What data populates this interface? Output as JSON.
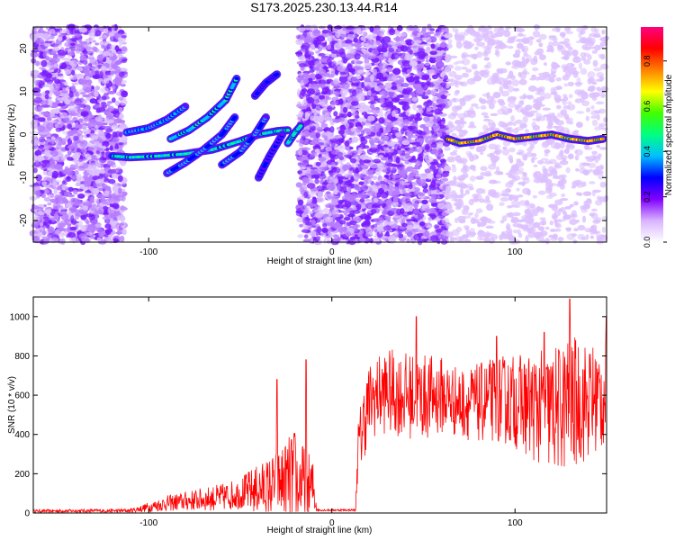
{
  "figure_title": "S173.2025.230.13.44.R14",
  "chart_data": [
    {
      "type": "heatmap",
      "id": "spectrogram",
      "xlabel": "Height of straight line (km)",
      "ylabel": "Frequency (Hz)",
      "xlim": [
        -163,
        150
      ],
      "ylim": [
        -25,
        25
      ],
      "xticks": [
        -100,
        0,
        100
      ],
      "xtick_labels": [
        "-100",
        "0",
        "100"
      ],
      "yticks": [
        -20,
        -10,
        0,
        10,
        20
      ],
      "ytick_labels": [
        "-20",
        "-10",
        "0",
        "10",
        "20"
      ],
      "colorbar": {
        "label": "Normalized spectral amplitude",
        "range": [
          0,
          0.95
        ],
        "ticks": [
          0.0,
          0.2,
          0.4,
          0.6,
          0.8
        ],
        "tick_labels": [
          "0.0",
          "0.2",
          "0.4",
          "0.6",
          "0.8"
        ],
        "colors": [
          "#ffffff",
          "#d9b3ff",
          "#8000ff",
          "#0000ff",
          "#00c0ff",
          "#00ff80",
          "#40ff00",
          "#ffff00",
          "#ff8000",
          "#ff0000",
          "#ff0080"
        ]
      },
      "noise_regions": [
        {
          "x_from": -163,
          "x_to": -113,
          "level": 0.2
        },
        {
          "x_from": -18,
          "x_to": 63,
          "level": 0.25
        },
        {
          "x_from": 63,
          "x_to": 150,
          "level": 0.05
        }
      ],
      "ridges": [
        {
          "x": [
            -120,
            -110,
            -95,
            -80,
            -65,
            -50,
            -40,
            -30,
            -24
          ],
          "y": [
            -5,
            -5.3,
            -5,
            -4.5,
            -3.5,
            -1.5,
            0,
            0.8,
            1
          ],
          "amp": 0.55
        },
        {
          "x": [
            -112,
            -100,
            -90,
            -80
          ],
          "y": [
            0.5,
            1.5,
            3.5,
            6.5
          ],
          "amp": 0.45
        },
        {
          "x": [
            -88,
            -78,
            -68,
            -58,
            -52
          ],
          "y": [
            -1,
            1,
            4,
            8,
            13
          ],
          "amp": 0.5
        },
        {
          "x": [
            -90,
            -80,
            -70,
            -60,
            -53
          ],
          "y": [
            -9,
            -6.5,
            -3.5,
            0,
            4
          ],
          "amp": 0.4
        },
        {
          "x": [
            -60,
            -50,
            -42,
            -36
          ],
          "y": [
            -7,
            -4,
            0,
            4
          ],
          "amp": 0.4
        },
        {
          "x": [
            -42,
            -36,
            -30
          ],
          "y": [
            9,
            12,
            14
          ],
          "amp": 0.35
        },
        {
          "x": [
            -40,
            -34,
            -27
          ],
          "y": [
            -10,
            -5,
            0
          ],
          "amp": 0.35
        },
        {
          "x": [
            -24,
            -20,
            -17
          ],
          "y": [
            -2,
            0.5,
            2
          ],
          "amp": 0.55
        },
        {
          "x": [
            63,
            70,
            80,
            90,
            100,
            110,
            120,
            130,
            140,
            148
          ],
          "y": [
            -1,
            -2,
            -1.5,
            0,
            -1,
            -0.5,
            0,
            -1,
            -1.5,
            -1
          ],
          "amp": 0.9
        }
      ]
    },
    {
      "type": "line",
      "id": "snr",
      "xlabel": "Height of straight line (km)",
      "ylabel": "SNR (10 * v/v)",
      "xlim": [
        -163,
        150
      ],
      "ylim": [
        0,
        1100
      ],
      "xticks": [
        -100,
        0,
        100
      ],
      "xtick_labels": [
        "-100",
        "0",
        "100"
      ],
      "yticks": [
        0,
        200,
        400,
        600,
        800,
        1000
      ],
      "ytick_labels": [
        "0",
        "200",
        "400",
        "600",
        "800",
        "1000"
      ],
      "color": "#ff0000",
      "envelope": {
        "x": [
          -163,
          -110,
          -100,
          -90,
          -80,
          -70,
          -60,
          -50,
          -45,
          -40,
          -35,
          -30,
          -25,
          -20,
          -15,
          -10,
          -8,
          0,
          13,
          14,
          17,
          20,
          25,
          30,
          40,
          50,
          60,
          70,
          80,
          90,
          100,
          110,
          120,
          130,
          140,
          150
        ],
        "base": [
          10,
          12,
          30,
          50,
          60,
          70,
          80,
          100,
          110,
          120,
          130,
          150,
          170,
          190,
          140,
          120,
          15,
          15,
          15,
          300,
          450,
          560,
          600,
          620,
          600,
          590,
          600,
          560,
          560,
          580,
          570,
          540,
          520,
          560,
          570,
          600
        ],
        "spread": [
          8,
          10,
          25,
          40,
          50,
          60,
          70,
          80,
          110,
          130,
          150,
          170,
          200,
          250,
          200,
          150,
          5,
          5,
          5,
          150,
          200,
          200,
          200,
          220,
          220,
          220,
          200,
          180,
          200,
          220,
          240,
          280,
          320,
          350,
          300,
          280
        ],
        "peaks": [
          {
            "x": 46,
            "y": 1000
          },
          {
            "x": 90,
            "y": 900
          },
          {
            "x": 116,
            "y": 920
          },
          {
            "x": 130,
            "y": 1090
          },
          {
            "x": 150,
            "y": 1000
          },
          {
            "x": -14,
            "y": 780
          },
          {
            "x": -30,
            "y": 680
          }
        ]
      }
    }
  ]
}
